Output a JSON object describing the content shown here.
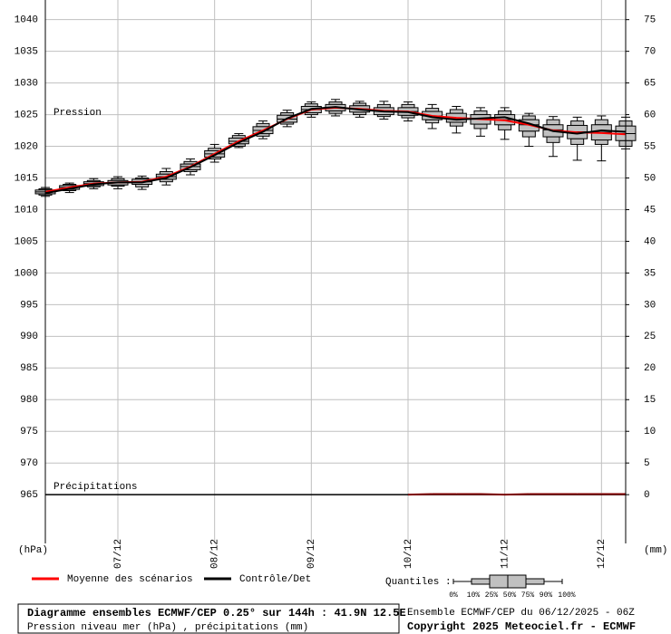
{
  "chart_data": {
    "type": "box",
    "annotations": [
      "Pression",
      "Précipitations"
    ],
    "ylabel": "(hPa)",
    "y2label": "(mm)",
    "x": [
      0,
      6,
      12,
      18,
      24,
      30,
      36,
      42,
      48,
      54,
      60,
      66,
      72,
      78,
      84,
      90,
      96,
      102,
      108,
      114,
      120,
      126,
      132,
      138,
      144
    ],
    "xlim": [
      0,
      144
    ],
    "xticks": [
      {
        "value": 18,
        "label": "07/12"
      },
      {
        "value": 42,
        "label": "08/12"
      },
      {
        "value": 66,
        "label": "09/12"
      },
      {
        "value": 90,
        "label": "10/12"
      },
      {
        "value": 114,
        "label": "11/12"
      },
      {
        "value": 138,
        "label": "12/12"
      }
    ],
    "ylim": [
      957.3,
      1043.1
    ],
    "yticks": [
      965,
      970,
      975,
      980,
      985,
      990,
      995,
      1000,
      1005,
      1010,
      1015,
      1020,
      1025,
      1030,
      1035,
      1040
    ],
    "y2lim": [
      -7.7,
      78.1
    ],
    "y2ticks": [
      0,
      5,
      10,
      15,
      20,
      25,
      30,
      35,
      40,
      45,
      50,
      55,
      60,
      65,
      70,
      75
    ],
    "grid": true,
    "quantile_label": "Quantiles :",
    "series": [
      {
        "name": "0%",
        "values": [
          1012.1,
          1012.7,
          1013.3,
          1013.3,
          1013.2,
          1013.9,
          1015.5,
          1017.5,
          1019.8,
          1021.2,
          1023.1,
          1024.6,
          1024.8,
          1024.6,
          1024.3,
          1024.0,
          1022.8,
          1022.1,
          1021.6,
          1021.1,
          1020.0,
          1018.4,
          1017.8,
          1017.7,
          1019.6
        ]
      },
      {
        "name": "10%",
        "values": [
          1012.3,
          1013.0,
          1013.6,
          1013.7,
          1013.6,
          1014.4,
          1016.0,
          1018.0,
          1020.0,
          1021.6,
          1023.5,
          1025.0,
          1025.2,
          1025.0,
          1024.7,
          1024.5,
          1023.7,
          1023.2,
          1022.8,
          1022.6,
          1021.5,
          1020.6,
          1020.3,
          1020.3,
          1020.0
        ]
      },
      {
        "name": "25%",
        "values": [
          1012.5,
          1013.2,
          1013.8,
          1013.9,
          1014.0,
          1014.8,
          1016.3,
          1018.3,
          1020.4,
          1022.0,
          1023.8,
          1025.3,
          1025.6,
          1025.4,
          1025.0,
          1024.9,
          1024.2,
          1023.8,
          1023.5,
          1023.4,
          1022.4,
          1021.5,
          1021.2,
          1021.0,
          1020.9
        ]
      },
      {
        "name": "50%",
        "values": [
          1012.8,
          1013.5,
          1014.1,
          1014.3,
          1014.4,
          1015.2,
          1016.8,
          1018.8,
          1020.8,
          1022.5,
          1024.3,
          1025.8,
          1026.1,
          1025.9,
          1025.6,
          1025.5,
          1024.8,
          1024.5,
          1024.3,
          1024.2,
          1023.4,
          1022.6,
          1022.3,
          1022.2,
          1022.0
        ]
      },
      {
        "name": "75%",
        "values": [
          1013.1,
          1013.8,
          1014.4,
          1014.6,
          1014.8,
          1015.6,
          1017.2,
          1019.3,
          1021.3,
          1023.1,
          1024.9,
          1026.3,
          1026.6,
          1026.4,
          1026.1,
          1026.1,
          1025.5,
          1025.2,
          1025.0,
          1025.0,
          1024.2,
          1023.4,
          1023.3,
          1023.4,
          1023.2
        ]
      },
      {
        "name": "90%",
        "values": [
          1013.3,
          1014.0,
          1014.6,
          1014.9,
          1015.0,
          1016.0,
          1017.6,
          1019.7,
          1021.7,
          1023.6,
          1025.3,
          1026.7,
          1027.0,
          1026.8,
          1026.6,
          1026.6,
          1026.0,
          1025.8,
          1025.6,
          1025.6,
          1024.8,
          1024.2,
          1024.0,
          1024.2,
          1024.0
        ]
      },
      {
        "name": "100%",
        "values": [
          1013.5,
          1014.2,
          1014.9,
          1015.2,
          1015.3,
          1016.5,
          1018.0,
          1020.3,
          1022.0,
          1024.0,
          1025.7,
          1027.0,
          1027.4,
          1027.1,
          1027.1,
          1027.0,
          1026.6,
          1026.3,
          1026.1,
          1026.1,
          1025.2,
          1024.7,
          1024.6,
          1024.8,
          1024.6
        ]
      }
    ],
    "lines": [
      {
        "name": "Moyenne des scénarios",
        "color": "#ff0000",
        "values": [
          1012.8,
          1013.5,
          1014.1,
          1014.3,
          1014.4,
          1015.2,
          1016.8,
          1018.8,
          1020.8,
          1022.5,
          1024.3,
          1025.8,
          1026.1,
          1025.9,
          1025.6,
          1025.5,
          1024.8,
          1024.5,
          1024.3,
          1024.1,
          1023.4,
          1022.5,
          1022.2,
          1022.1,
          1021.9
        ]
      },
      {
        "name": "Contrôle/Det",
        "color": "#000000",
        "values": [
          1012.6,
          1013.3,
          1014.0,
          1014.3,
          1014.3,
          1015.0,
          1016.7,
          1018.6,
          1020.6,
          1022.3,
          1024.4,
          1025.9,
          1026.2,
          1025.8,
          1025.5,
          1025.4,
          1024.6,
          1024.2,
          1024.4,
          1024.6,
          1023.6,
          1022.4,
          1022.0,
          1022.5,
          1022.3
        ]
      }
    ],
    "precipitation": {
      "color": "#800000",
      "axis": "y2",
      "values": [
        0,
        0,
        0,
        0,
        0,
        0,
        0,
        0,
        0,
        0,
        0,
        0,
        0,
        0,
        0,
        0,
        0.1,
        0.1,
        0.1,
        0,
        0.1,
        0.1,
        0.1,
        0.1,
        0.1
      ]
    },
    "footer": {
      "title": "Diagramme ensembles ECMWF/CEP 0.25° sur 144h : 41.9N 12.5E",
      "subtitle": "Pression niveau mer (hPa) , précipitations (mm)",
      "run": "Ensemble ECMWF/CEP du 06/12/2025 - 06Z",
      "copyright": "Copyright 2025 Meteociel.fr - ECMWF"
    }
  }
}
